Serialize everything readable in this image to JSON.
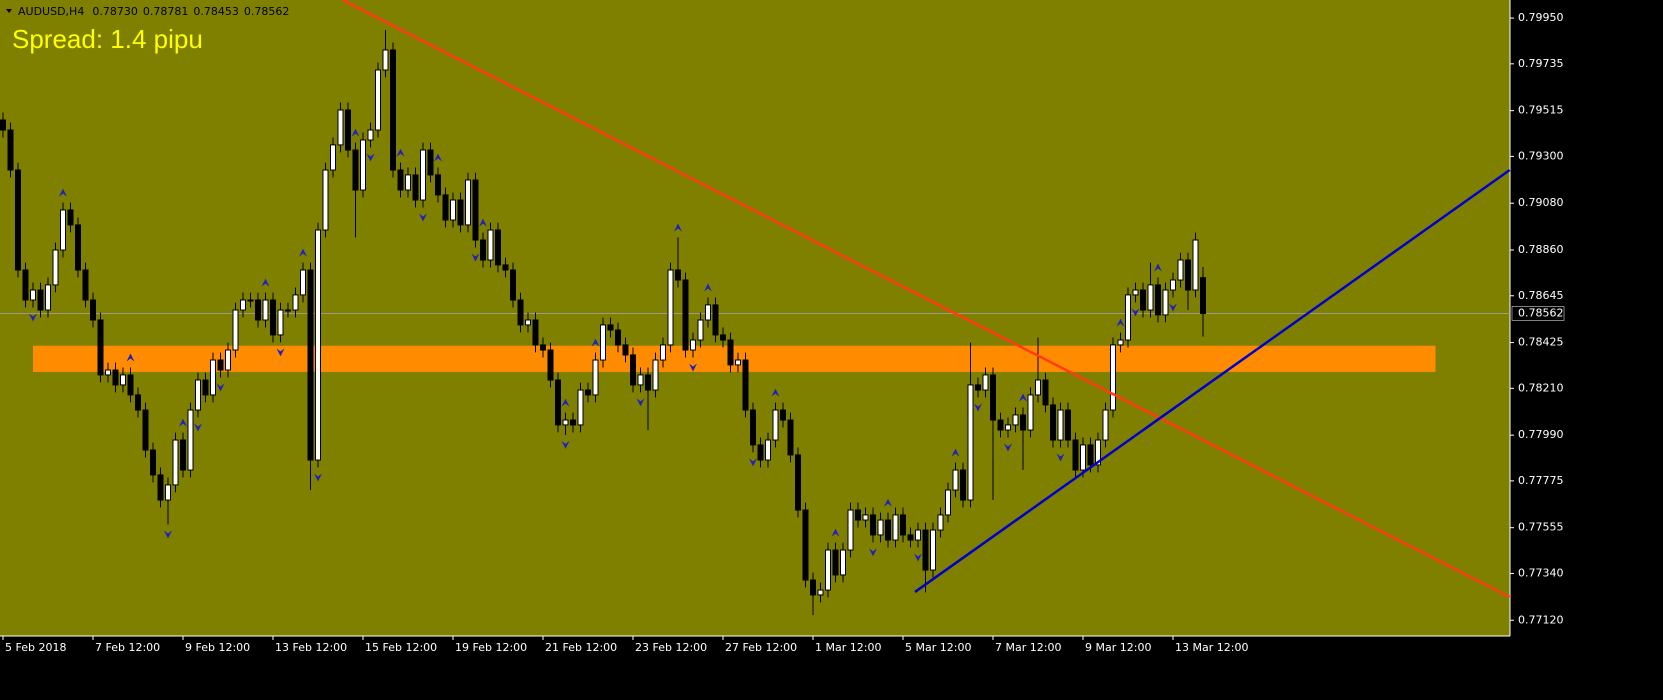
{
  "chart_data": {
    "type": "candlestick",
    "symbol": "AUDUSD,H4",
    "info_values": [
      "0.78730",
      "0.78781",
      "0.78453",
      "0.78562"
    ],
    "spread_text": "Spread: 1.4 pipu",
    "categories": [
      "5 Feb 2018",
      null,
      null,
      null,
      null,
      null,
      null,
      null,
      null,
      null,
      null,
      null,
      "7 Feb 12:00",
      null,
      null,
      null,
      null,
      null,
      null,
      null,
      null,
      null,
      null,
      null,
      "9 Feb 12:00",
      null,
      null,
      null,
      null,
      null,
      null,
      null,
      null,
      null,
      null,
      null,
      "13 Feb 12:00",
      null,
      null,
      null,
      null,
      null,
      null,
      null,
      null,
      null,
      null,
      null,
      "15 Feb 12:00",
      null,
      null,
      null,
      null,
      null,
      null,
      null,
      null,
      null,
      null,
      null,
      "19 Feb 12:00",
      null,
      null,
      null,
      null,
      null,
      null,
      null,
      null,
      null,
      null,
      null,
      "21 Feb 12:00",
      null,
      null,
      null,
      null,
      null,
      null,
      null,
      null,
      null,
      null,
      null,
      "23 Feb 12:00",
      null,
      null,
      null,
      null,
      null,
      null,
      null,
      null,
      null,
      null,
      null,
      "27 Feb 12:00",
      null,
      null,
      null,
      null,
      null,
      null,
      null,
      null,
      null,
      null,
      null,
      "1 Mar 12:00",
      null,
      null,
      null,
      null,
      null,
      null,
      null,
      null,
      null,
      null,
      null,
      "5 Mar 12:00",
      null,
      null,
      null,
      null,
      null,
      null,
      null,
      null,
      null,
      null,
      null,
      "7 Mar 12:00",
      null,
      null,
      null,
      null,
      null,
      null,
      null,
      null,
      null,
      null,
      null,
      "9 Mar 12:00",
      null,
      null,
      null,
      null,
      null,
      null,
      null,
      null,
      null,
      null,
      null,
      "13 Mar 12:00",
      null,
      null,
      null,
      null
    ],
    "open": [
      0.79471,
      0.79424,
      0.79236,
      0.78766,
      0.78625,
      0.78672,
      0.78578,
      0.78696,
      0.7886,
      0.79048,
      0.78978,
      0.78766,
      0.78625,
      0.78531,
      0.78273,
      0.78296,
      0.78226,
      0.78273,
      0.78179,
      0.78108,
      0.7792,
      0.77803,
      0.77685,
      0.77756,
      0.77967,
      0.77826,
      0.78108,
      0.78249,
      0.78179,
      0.78343,
      0.78296,
      0.7839,
      0.78578,
      0.78625,
      0.78625,
      0.78531,
      0.78625,
      0.78461,
      0.78578,
      0.78578,
      0.78649,
      0.78766,
      0.77873,
      0.78954,
      0.79236,
      0.79354,
      0.79518,
      0.7933,
      0.79142,
      0.79377,
      0.79424,
      0.79706,
      0.798,
      0.79236,
      0.79142,
      0.79213,
      0.79095,
      0.7933,
      0.79213,
      0.79119,
      0.79001,
      0.79095,
      0.78978,
      0.79189,
      0.78907,
      0.78813,
      0.78954,
      0.7879,
      0.78766,
      0.78625,
      0.78508,
      0.78531,
      0.78414,
      0.7839,
      0.78249,
      0.78038,
      0.78061,
      0.78038,
      0.78202,
      0.78179,
      0.78343,
      0.78508,
      0.78484,
      0.78414,
      0.78367,
      0.78226,
      0.78273,
      0.78202,
      0.78343,
      0.78414,
      0.78766,
      0.78719,
      0.7839,
      0.78437,
      0.78531,
      0.78602,
      0.78461,
      0.78437,
      0.7832,
      0.78343,
      0.78108,
      0.77944,
      0.77873,
      0.77967,
      0.78108,
      0.78061,
      0.77897,
      0.77638,
      0.77309,
      0.77239,
      0.77262,
      0.7745,
      0.77333,
      0.7745,
      0.77638,
      0.77591,
      0.77615,
      0.77521,
      0.77591,
      0.77497,
      0.77615,
      0.77521,
      0.77497,
      0.77544,
      0.77356,
      0.77544,
      0.77615,
      0.77732,
      0.77826,
      0.77685,
      0.78226,
      0.78202,
      0.78273,
      0.78061,
      0.78014,
      0.78038,
      0.78085,
      0.78014,
      0.78179,
      0.78249,
      0.78132,
      0.77967,
      0.78108,
      0.77967,
      0.77826,
      0.77944,
      0.7785,
      0.77967,
      0.78108,
      0.78414,
      0.78437,
      0.78649,
      0.78672,
      0.78578,
      0.78696,
      0.78555,
      0.78672,
      0.78719,
      0.78813,
      0.78672,
      0.7873
    ],
    "high": [
      0.79506,
      0.79459,
      0.79271,
      0.78801,
      0.78707,
      0.78707,
      0.78731,
      0.78895,
      0.79083,
      0.79083,
      0.79013,
      0.78801,
      0.7866,
      0.78566,
      0.78331,
      0.78331,
      0.78308,
      0.78308,
      0.78214,
      0.78143,
      0.77955,
      0.77838,
      0.77791,
      0.78002,
      0.78002,
      0.78143,
      0.78284,
      0.78284,
      0.78378,
      0.78378,
      0.78425,
      0.78613,
      0.7866,
      0.7866,
      0.7866,
      0.7866,
      0.7866,
      0.78613,
      0.78613,
      0.78684,
      0.78801,
      0.78801,
      0.78989,
      0.79271,
      0.79389,
      0.79553,
      0.79553,
      0.79365,
      0.79412,
      0.79459,
      0.79741,
      0.79894,
      0.79835,
      0.79271,
      0.79248,
      0.79248,
      0.79365,
      0.79365,
      0.79248,
      0.79154,
      0.7913,
      0.7913,
      0.79224,
      0.79224,
      0.78942,
      0.78989,
      0.78989,
      0.78825,
      0.78801,
      0.7866,
      0.78566,
      0.78566,
      0.78449,
      0.78425,
      0.78284,
      0.78096,
      0.78096,
      0.78237,
      0.78237,
      0.78378,
      0.78543,
      0.78543,
      0.78519,
      0.78449,
      0.78402,
      0.78308,
      0.78308,
      0.78378,
      0.78449,
      0.78801,
      0.78919,
      0.78754,
      0.78472,
      0.78566,
      0.78637,
      0.78637,
      0.78496,
      0.78472,
      0.78378,
      0.78378,
      0.78143,
      0.77979,
      0.78002,
      0.78143,
      0.78143,
      0.78096,
      0.77932,
      0.77673,
      0.77344,
      0.77297,
      0.77485,
      0.77485,
      0.77485,
      0.77673,
      0.77673,
      0.7765,
      0.7765,
      0.77626,
      0.77626,
      0.7765,
      0.7765,
      0.77556,
      0.77579,
      0.77579,
      0.77579,
      0.7765,
      0.77767,
      0.77861,
      0.77861,
      0.78425,
      0.78261,
      0.78308,
      0.78308,
      0.78096,
      0.78073,
      0.7812,
      0.7812,
      0.78214,
      0.78449,
      0.78284,
      0.78167,
      0.78143,
      0.78143,
      0.78002,
      0.77979,
      0.77979,
      0.78002,
      0.78143,
      0.78449,
      0.78472,
      0.78684,
      0.78707,
      0.78707,
      0.78801,
      0.78731,
      0.78707,
      0.78754,
      0.78848,
      0.78848,
      0.78942,
      0.78781
    ],
    "low": [
      0.79389,
      0.79201,
      0.78731,
      0.7859,
      0.7859,
      0.78543,
      0.78543,
      0.78661,
      0.78825,
      0.78943,
      0.78731,
      0.7859,
      0.78496,
      0.78238,
      0.78238,
      0.78191,
      0.78191,
      0.78144,
      0.78073,
      0.77885,
      0.77768,
      0.7765,
      0.7757,
      0.77721,
      0.77791,
      0.77791,
      0.78073,
      0.78144,
      0.78144,
      0.78261,
      0.78261,
      0.78355,
      0.78543,
      0.7859,
      0.78496,
      0.78496,
      0.78426,
      0.78426,
      0.78543,
      0.78543,
      0.78614,
      0.77732,
      0.77838,
      0.78919,
      0.79201,
      0.79319,
      0.79295,
      0.78919,
      0.79107,
      0.79342,
      0.79389,
      0.79671,
      0.79201,
      0.79107,
      0.79107,
      0.7906,
      0.7906,
      0.79178,
      0.79084,
      0.78966,
      0.78966,
      0.78943,
      0.78943,
      0.78872,
      0.78778,
      0.78778,
      0.78755,
      0.78731,
      0.7859,
      0.78473,
      0.78473,
      0.78379,
      0.78355,
      0.78214,
      0.78003,
      0.77991,
      0.78003,
      0.78003,
      0.78144,
      0.78144,
      0.78308,
      0.78449,
      0.78379,
      0.78332,
      0.78191,
      0.78191,
      0.78014,
      0.78167,
      0.78308,
      0.78379,
      0.78684,
      0.78355,
      0.78355,
      0.78402,
      0.78496,
      0.78426,
      0.78402,
      0.78285,
      0.78285,
      0.78073,
      0.77909,
      0.77838,
      0.77838,
      0.77932,
      0.78026,
      0.77862,
      0.77603,
      0.77274,
      0.77144,
      0.77204,
      0.77227,
      0.77298,
      0.77298,
      0.77415,
      0.77556,
      0.77556,
      0.77486,
      0.77486,
      0.77462,
      0.77462,
      0.77486,
      0.77462,
      0.77462,
      0.77251,
      0.77321,
      0.77509,
      0.7758,
      0.77697,
      0.7765,
      0.7765,
      0.78167,
      0.78167,
      0.77685,
      0.77979,
      0.77979,
      0.78003,
      0.77826,
      0.77979,
      0.78144,
      0.78097,
      0.77932,
      0.77932,
      0.77932,
      0.77791,
      0.77791,
      0.77815,
      0.77815,
      0.77932,
      0.78073,
      0.78379,
      0.78402,
      0.78614,
      0.78543,
      0.78543,
      0.7852,
      0.7852,
      0.78637,
      0.78684,
      0.78578,
      0.78637,
      0.78453
    ],
    "close": [
      0.79424,
      0.79236,
      0.78766,
      0.78625,
      0.78672,
      0.78578,
      0.78696,
      0.7886,
      0.79048,
      0.78978,
      0.78766,
      0.78625,
      0.78531,
      0.78273,
      0.78296,
      0.78226,
      0.78273,
      0.78179,
      0.78108,
      0.7792,
      0.77803,
      0.77685,
      0.77756,
      0.77967,
      0.77826,
      0.78108,
      0.78249,
      0.78179,
      0.78343,
      0.78296,
      0.7839,
      0.78578,
      0.78625,
      0.78625,
      0.78531,
      0.78625,
      0.78461,
      0.78578,
      0.78578,
      0.78649,
      0.78766,
      0.77873,
      0.78954,
      0.79236,
      0.79354,
      0.79518,
      0.7933,
      0.79142,
      0.79377,
      0.79424,
      0.79706,
      0.798,
      0.79236,
      0.79142,
      0.79213,
      0.79095,
      0.7933,
      0.79213,
      0.79119,
      0.79001,
      0.79095,
      0.78978,
      0.79189,
      0.78907,
      0.78813,
      0.78954,
      0.7879,
      0.78766,
      0.78625,
      0.78508,
      0.78531,
      0.78414,
      0.7839,
      0.78249,
      0.78038,
      0.78061,
      0.78038,
      0.78202,
      0.78179,
      0.78343,
      0.78508,
      0.78484,
      0.78414,
      0.78367,
      0.78226,
      0.78273,
      0.78202,
      0.78343,
      0.78414,
      0.78766,
      0.78719,
      0.7839,
      0.78437,
      0.78531,
      0.78602,
      0.78461,
      0.78437,
      0.7832,
      0.78343,
      0.78108,
      0.77944,
      0.77873,
      0.77967,
      0.78108,
      0.78061,
      0.77897,
      0.77638,
      0.77309,
      0.77239,
      0.77262,
      0.7745,
      0.77333,
      0.7745,
      0.77638,
      0.77591,
      0.77615,
      0.77521,
      0.77591,
      0.77497,
      0.77615,
      0.77521,
      0.77497,
      0.77544,
      0.77356,
      0.77544,
      0.77615,
      0.77732,
      0.77826,
      0.77685,
      0.78226,
      0.78202,
      0.78273,
      0.78061,
      0.78014,
      0.78038,
      0.78085,
      0.78014,
      0.78179,
      0.78249,
      0.78132,
      0.77967,
      0.78108,
      0.77967,
      0.77826,
      0.77944,
      0.7785,
      0.77967,
      0.78108,
      0.78414,
      0.78437,
      0.78649,
      0.78672,
      0.78578,
      0.78696,
      0.78555,
      0.78672,
      0.78719,
      0.78813,
      0.78672,
      0.78907,
      0.78562
    ],
    "fractals_up": [
      8,
      17,
      24,
      35,
      40,
      47,
      53,
      58,
      64,
      75,
      79,
      90,
      94,
      103,
      111,
      118,
      127,
      136,
      149,
      154
    ],
    "fractals_down": [
      4,
      22,
      26,
      29,
      37,
      42,
      49,
      56,
      63,
      75,
      85,
      92,
      100,
      116,
      122,
      130,
      134,
      141,
      151,
      156
    ],
    "zone": {
      "x": [
        4,
        191
      ],
      "y": [
        0.7841,
        0.78287
      ],
      "color": "#ff8c00"
    },
    "trendlines": [
      {
        "x": [
          45.3,
          200.9
        ],
        "y": [
          0.80035,
          0.77229
        ],
        "color": "#ff3c14"
      },
      {
        "x": [
          121.6,
          200.9
        ],
        "y": [
          0.77253,
          0.79236
        ],
        "color": "#0000cc"
      }
    ],
    "current_price": {
      "value": 0.78562,
      "label": "0.78562"
    },
    "ylim": [
      0.77046,
      0.80035
    ],
    "yticks": [
      {
        "value": 0.7995,
        "label": "0.79950"
      },
      {
        "value": 0.79735,
        "label": "0.79735"
      },
      {
        "value": 0.79515,
        "label": "0.79515"
      },
      {
        "value": 0.793,
        "label": "0.79300"
      },
      {
        "value": 0.7908,
        "label": "0.79080"
      },
      {
        "value": 0.7886,
        "label": "0.78860"
      },
      {
        "value": 0.78645,
        "label": "0.78645"
      },
      {
        "value": 0.78425,
        "label": "0.78425"
      },
      {
        "value": 0.7821,
        "label": "0.78210"
      },
      {
        "value": 0.7799,
        "label": "0.77990"
      },
      {
        "value": 0.77775,
        "label": "0.77775"
      },
      {
        "value": 0.77555,
        "label": "0.77555"
      },
      {
        "value": 0.7734,
        "label": "0.77340"
      },
      {
        "value": 0.7712,
        "label": "0.77120"
      }
    ]
  }
}
